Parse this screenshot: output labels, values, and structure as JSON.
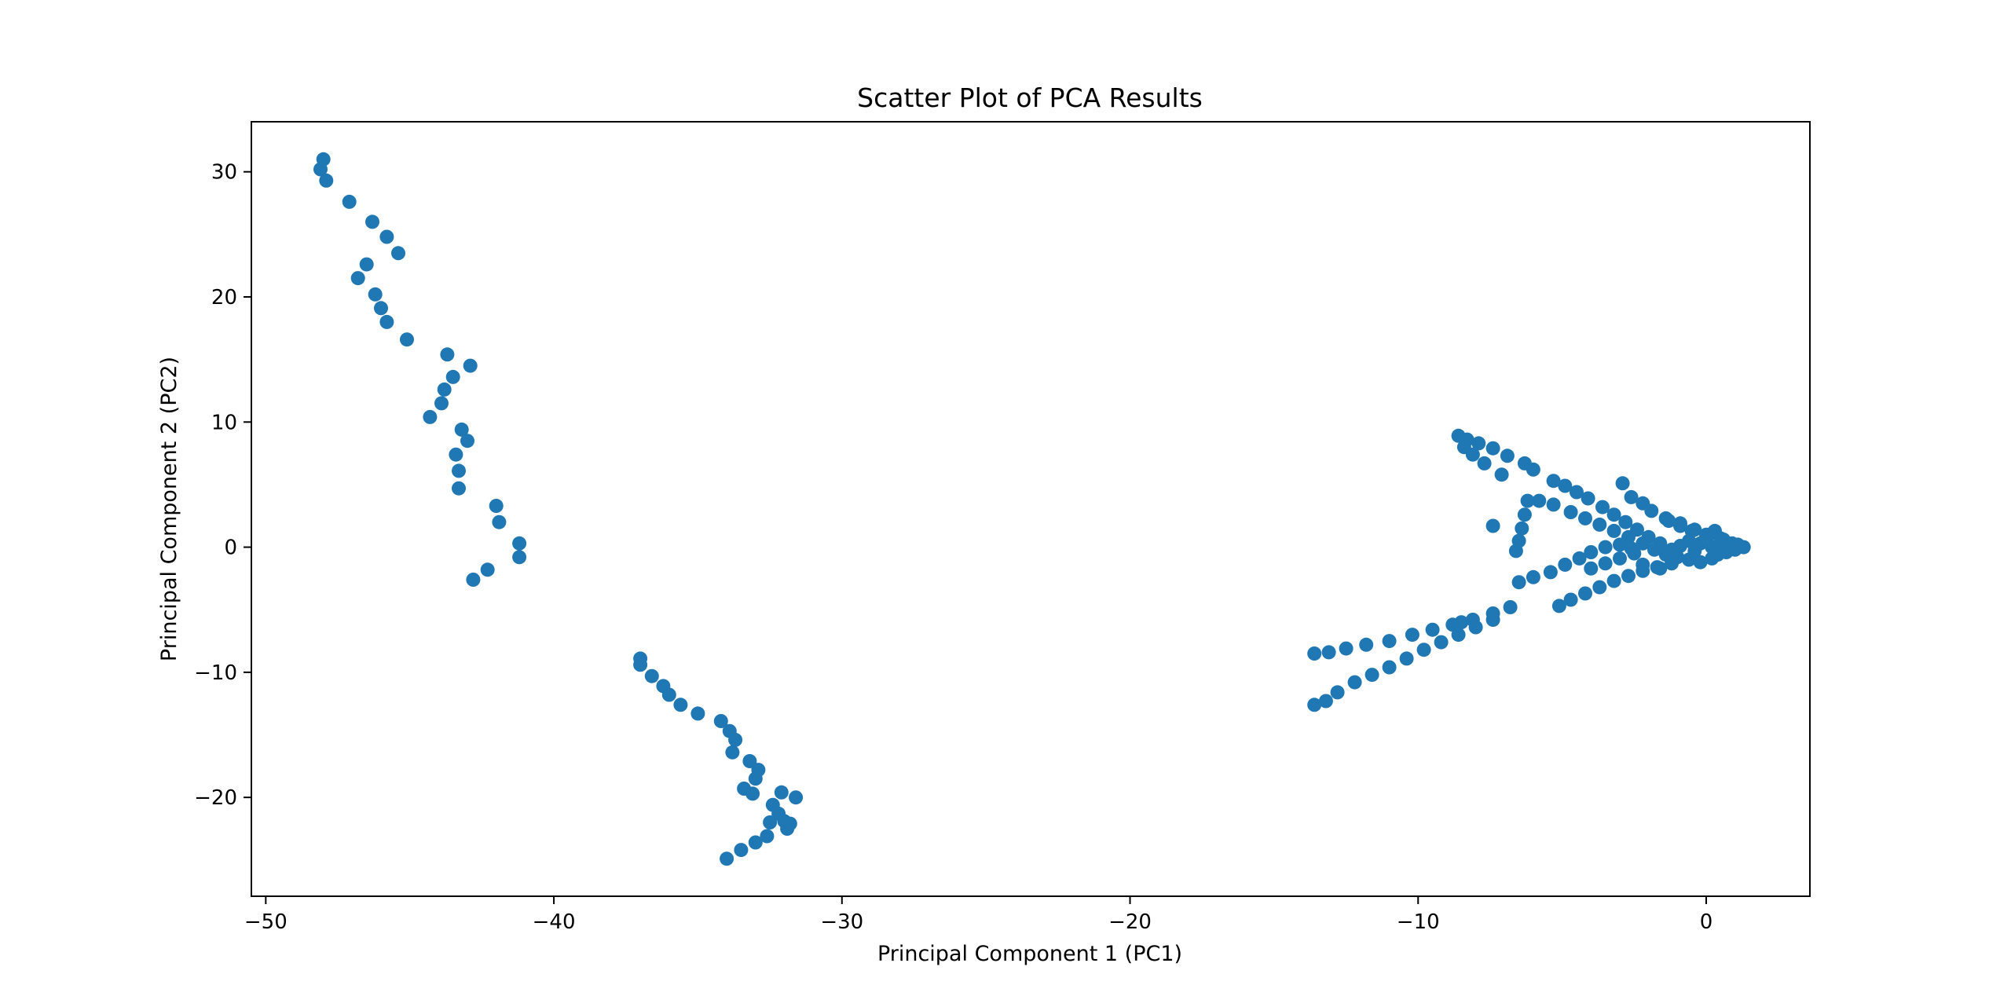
{
  "chart_data": {
    "type": "scatter",
    "title": "Scatter Plot of PCA Results",
    "xlabel": "Principal Component 1 (PC1)",
    "ylabel": "Principal Component 2 (PC2)",
    "xlim": [
      -50.5,
      3.6
    ],
    "ylim": [
      -27.9,
      34.0
    ],
    "xticks": [
      -50,
      -40,
      -30,
      -20,
      -10,
      0
    ],
    "yticks": [
      -20,
      -10,
      0,
      10,
      20,
      30
    ],
    "xtick_labels": [
      "−50",
      "−40",
      "−30",
      "−20",
      "−10",
      "0"
    ],
    "ytick_labels": [
      "−20",
      "−10",
      "0",
      "10",
      "20",
      "30"
    ],
    "grid": false,
    "legend": "none",
    "marker_color": "#1f77b4",
    "series": [
      {
        "points": [
          [
            -48.0,
            31.0
          ],
          [
            -48.1,
            30.2
          ],
          [
            -47.9,
            29.3
          ],
          [
            -47.1,
            27.6
          ],
          [
            -46.3,
            26.0
          ],
          [
            -45.8,
            24.8
          ],
          [
            -45.4,
            23.5
          ],
          [
            -46.5,
            22.6
          ],
          [
            -46.8,
            21.5
          ],
          [
            -46.2,
            20.2
          ],
          [
            -46.0,
            19.1
          ],
          [
            -45.8,
            18.0
          ],
          [
            -45.1,
            16.6
          ],
          [
            -43.7,
            15.4
          ],
          [
            -42.9,
            14.5
          ],
          [
            -43.5,
            13.6
          ],
          [
            -43.8,
            12.6
          ],
          [
            -43.9,
            11.5
          ],
          [
            -44.3,
            10.4
          ],
          [
            -43.2,
            9.4
          ],
          [
            -43.0,
            8.5
          ],
          [
            -43.4,
            7.4
          ],
          [
            -43.3,
            6.1
          ],
          [
            -43.3,
            4.7
          ],
          [
            -42.0,
            3.3
          ],
          [
            -41.9,
            2.0
          ],
          [
            -41.2,
            0.3
          ],
          [
            -41.2,
            -0.8
          ],
          [
            -42.3,
            -1.8
          ],
          [
            -42.8,
            -2.6
          ],
          [
            -37.0,
            -8.9
          ],
          [
            -37.0,
            -9.4
          ],
          [
            -36.6,
            -10.3
          ],
          [
            -36.2,
            -11.1
          ],
          [
            -36.0,
            -11.8
          ],
          [
            -35.6,
            -12.6
          ],
          [
            -35.0,
            -13.3
          ],
          [
            -34.2,
            -13.9
          ],
          [
            -33.9,
            -14.7
          ],
          [
            -33.7,
            -15.4
          ],
          [
            -33.8,
            -16.4
          ],
          [
            -33.2,
            -17.1
          ],
          [
            -32.9,
            -17.8
          ],
          [
            -33.0,
            -18.5
          ],
          [
            -33.4,
            -19.3
          ],
          [
            -33.1,
            -19.7
          ],
          [
            -32.1,
            -19.6
          ],
          [
            -31.6,
            -20.0
          ],
          [
            -32.4,
            -20.6
          ],
          [
            -32.2,
            -21.3
          ],
          [
            -32.0,
            -21.9
          ],
          [
            -32.5,
            -22.0
          ],
          [
            -31.8,
            -22.1
          ],
          [
            -31.9,
            -22.5
          ],
          [
            -32.6,
            -23.1
          ],
          [
            -33.0,
            -23.6
          ],
          [
            -33.5,
            -24.2
          ],
          [
            -34.0,
            -24.9
          ],
          [
            -8.6,
            8.9
          ],
          [
            -8.3,
            8.6
          ],
          [
            -7.9,
            8.3
          ],
          [
            -7.4,
            7.9
          ],
          [
            -6.9,
            7.3
          ],
          [
            -6.3,
            6.7
          ],
          [
            -6.0,
            6.2
          ],
          [
            -8.4,
            8.0
          ],
          [
            -8.1,
            7.4
          ],
          [
            -7.7,
            6.7
          ],
          [
            -7.1,
            5.8
          ],
          [
            -5.3,
            5.3
          ],
          [
            -4.9,
            4.9
          ],
          [
            -4.5,
            4.4
          ],
          [
            -4.1,
            3.9
          ],
          [
            -3.6,
            3.2
          ],
          [
            -3.2,
            2.6
          ],
          [
            -2.8,
            2.0
          ],
          [
            -2.4,
            1.4
          ],
          [
            -2.0,
            0.8
          ],
          [
            -1.6,
            0.3
          ],
          [
            -6.2,
            3.7
          ],
          [
            -5.8,
            3.7
          ],
          [
            -5.3,
            3.4
          ],
          [
            -4.7,
            2.8
          ],
          [
            -4.2,
            2.3
          ],
          [
            -3.7,
            1.8
          ],
          [
            -3.2,
            1.3
          ],
          [
            -2.7,
            0.8
          ],
          [
            -2.2,
            0.3
          ],
          [
            -6.3,
            2.6
          ],
          [
            -6.4,
            1.5
          ],
          [
            -6.5,
            0.5
          ],
          [
            -6.6,
            -0.3
          ],
          [
            -7.4,
            1.7
          ],
          [
            -2.9,
            5.1
          ],
          [
            -2.6,
            4.0
          ],
          [
            -2.2,
            3.5
          ],
          [
            -1.9,
            2.9
          ],
          [
            -1.4,
            2.3
          ],
          [
            -0.9,
            1.9
          ],
          [
            -0.4,
            1.4
          ],
          [
            0.1,
            1.0
          ],
          [
            0.6,
            0.6
          ],
          [
            1.1,
            0.2
          ],
          [
            -1.3,
            2.1
          ],
          [
            -0.9,
            1.7
          ],
          [
            -0.5,
            1.3
          ],
          [
            0.0,
            1.0
          ],
          [
            0.3,
            1.3
          ],
          [
            0.5,
            0.7
          ],
          [
            -1.8,
            -0.2
          ],
          [
            -1.4,
            -0.6
          ],
          [
            -1.0,
            -0.8
          ],
          [
            -0.6,
            -1.0
          ],
          [
            -0.2,
            -1.2
          ],
          [
            0.2,
            -0.9
          ],
          [
            -2.5,
            -0.5
          ],
          [
            -3.0,
            -0.9
          ],
          [
            -3.5,
            -1.3
          ],
          [
            -4.0,
            -1.7
          ],
          [
            -2.2,
            -1.4
          ],
          [
            -1.6,
            -1.7
          ],
          [
            -6.5,
            -2.8
          ],
          [
            -6.0,
            -2.4
          ],
          [
            -5.4,
            -2.0
          ],
          [
            -4.9,
            -1.4
          ],
          [
            -4.4,
            -0.9
          ],
          [
            -4.0,
            -0.4
          ],
          [
            -3.5,
            0.0
          ],
          [
            -3.0,
            0.2
          ],
          [
            -2.6,
            -0.1
          ],
          [
            -5.1,
            -4.7
          ],
          [
            -4.7,
            -4.2
          ],
          [
            -4.2,
            -3.7
          ],
          [
            -3.7,
            -3.2
          ],
          [
            -3.2,
            -2.7
          ],
          [
            -2.7,
            -2.3
          ],
          [
            -2.2,
            -1.9
          ],
          [
            -1.7,
            -1.6
          ],
          [
            -1.2,
            -1.3
          ],
          [
            -13.6,
            -8.5
          ],
          [
            -13.1,
            -8.4
          ],
          [
            -12.5,
            -8.1
          ],
          [
            -11.8,
            -7.8
          ],
          [
            -11.0,
            -7.5
          ],
          [
            -10.2,
            -7.0
          ],
          [
            -9.5,
            -6.6
          ],
          [
            -8.8,
            -6.2
          ],
          [
            -8.1,
            -5.8
          ],
          [
            -7.4,
            -5.3
          ],
          [
            -6.8,
            -4.8
          ],
          [
            -8.5,
            -6.0
          ],
          [
            -13.6,
            -12.6
          ],
          [
            -13.2,
            -12.3
          ],
          [
            -12.8,
            -11.6
          ],
          [
            -12.2,
            -10.8
          ],
          [
            -11.6,
            -10.2
          ],
          [
            -11.0,
            -9.6
          ],
          [
            -10.4,
            -8.9
          ],
          [
            -9.8,
            -8.2
          ],
          [
            -9.2,
            -7.6
          ],
          [
            -8.6,
            -7.0
          ],
          [
            -8.0,
            -6.4
          ],
          [
            -7.4,
            -5.8
          ],
          [
            1.3,
            0.0
          ],
          [
            1.0,
            -0.2
          ],
          [
            0.7,
            -0.4
          ],
          [
            0.4,
            -0.6
          ],
          [
            0.9,
            0.3
          ],
          [
            0.5,
            0.2
          ],
          [
            0.2,
            0.0
          ],
          [
            -0.2,
            0.3
          ],
          [
            -0.6,
            0.5
          ],
          [
            -0.9,
            0.1
          ],
          [
            -0.4,
            -0.3
          ],
          [
            -1.2,
            -0.2
          ]
        ]
      }
    ]
  }
}
